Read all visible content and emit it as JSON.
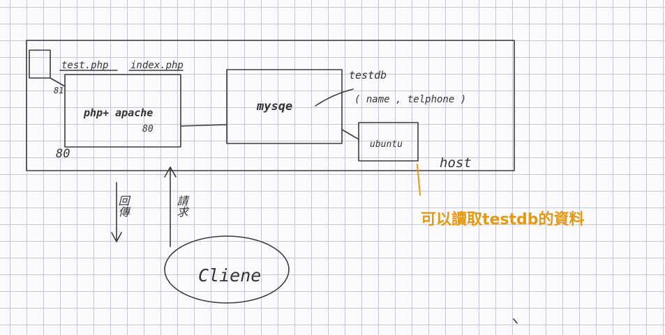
{
  "labels": {
    "test_php": "test.php",
    "index_php": "index.php",
    "port_81": "81",
    "port_80_inner": "80",
    "port_80_outer": "80",
    "php_apache": "php+ apache",
    "mysql": "mysqe",
    "testdb": "testdb",
    "testdb_fields": "( name , telphone )",
    "ubuntu": "ubuntu",
    "host": "host",
    "return_label": "回傳",
    "request_label": "請求",
    "client": "Cliene",
    "note": "可以讀取testdb的資料"
  },
  "colors": {
    "ink": "#3a3a3a",
    "note": "#e39a12",
    "grid": "#c3c8d8",
    "paper": "#fbfbfd"
  }
}
